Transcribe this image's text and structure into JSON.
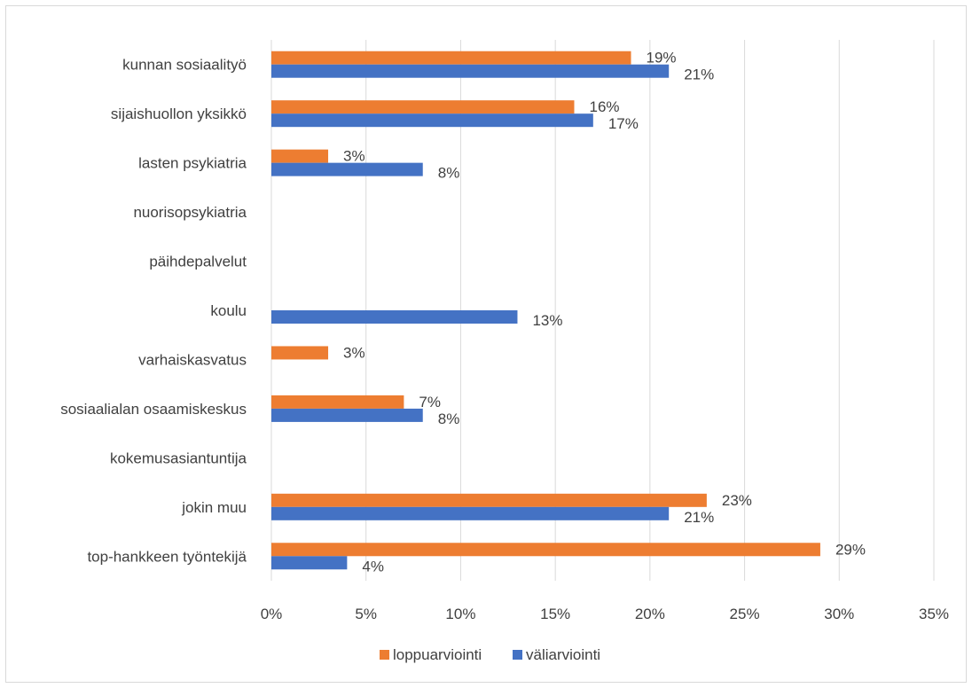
{
  "chart_data": {
    "type": "bar",
    "orientation": "horizontal",
    "title": "",
    "xlabel": "",
    "ylabel": "",
    "categories": [
      "kunnan sosiaalityö",
      "sijaishuollon yksikkö",
      "lasten psykiatria",
      "nuorisopsykiatria",
      "päihdepalvelut",
      "koulu",
      "varhaiskasvatus",
      "sosiaalialan osaamiskeskus",
      "kokemusasiantuntija",
      "jokin muu",
      "top-hankkeen työntekijä"
    ],
    "series": [
      {
        "name": "loppuarviointi",
        "color": "#ED7D31",
        "values": [
          19,
          16,
          3,
          null,
          null,
          null,
          3,
          7,
          null,
          23,
          29
        ],
        "labels": [
          "19%",
          "16%",
          "3%",
          "",
          "",
          "",
          "3%",
          "7%",
          "",
          "23%",
          "29%"
        ]
      },
      {
        "name": "väliarviointi",
        "color": "#4472C4",
        "values": [
          21,
          17,
          8,
          null,
          null,
          13,
          null,
          8,
          null,
          21,
          4
        ],
        "labels": [
          "21%",
          "17%",
          "8%",
          "",
          "",
          "13%",
          "",
          "8%",
          "",
          "21%",
          "4%"
        ]
      }
    ],
    "xlim": [
      0,
      35
    ],
    "xticks": [
      0,
      5,
      10,
      15,
      20,
      25,
      30,
      35
    ],
    "xtick_labels": [
      "0%",
      "5%",
      "10%",
      "15%",
      "20%",
      "25%",
      "30%",
      "35%"
    ],
    "grid": "vertical",
    "legend": "bottom",
    "gridline_color": "#d9d9d9"
  }
}
